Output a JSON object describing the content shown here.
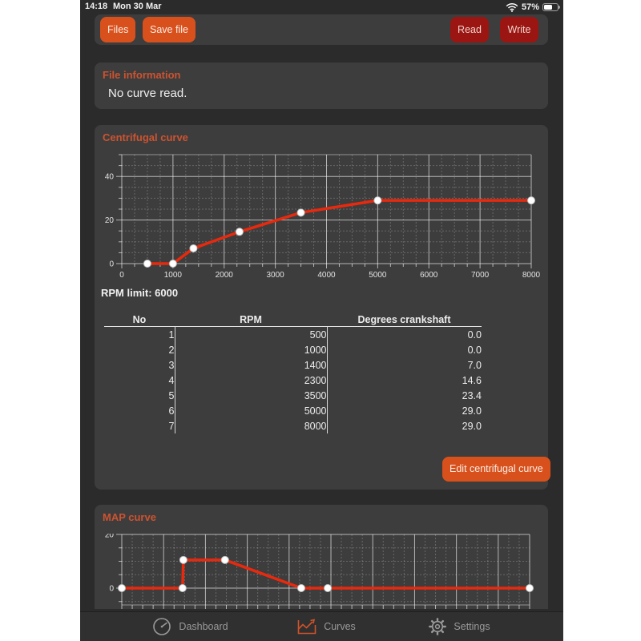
{
  "status_bar": {
    "time": "14:18",
    "date": "Mon 30 Mar",
    "battery": "57%"
  },
  "toolbar": {
    "files": "Files",
    "save": "Save file",
    "read": "Read",
    "write": "Write"
  },
  "file_info": {
    "title": "File information",
    "body": "No curve read."
  },
  "centrifugal": {
    "title": "Centrifugal curve",
    "rpm_limit_label": "RPM limit: 6000",
    "table": {
      "headers": [
        "No",
        "RPM",
        "Degrees crankshaft"
      ],
      "rows": [
        [
          "1",
          "500",
          "0.0"
        ],
        [
          "2",
          "1000",
          "0.0"
        ],
        [
          "3",
          "1400",
          "7.0"
        ],
        [
          "4",
          "2300",
          "14.6"
        ],
        [
          "5",
          "3500",
          "23.4"
        ],
        [
          "6",
          "5000",
          "29.0"
        ],
        [
          "7",
          "8000",
          "29.0"
        ]
      ]
    },
    "edit_button": "Edit centrifugal curve"
  },
  "map": {
    "title": "MAP curve"
  },
  "tab_bar": {
    "items": [
      {
        "label": "Dashboard",
        "active": false
      },
      {
        "label": "Curves",
        "active": true
      },
      {
        "label": "Settings",
        "active": false
      }
    ]
  },
  "colors": {
    "page_margin": "#ffffff",
    "app_background": "#2b2b2b",
    "panel": "#3d3d3d",
    "accent_orange": "#d8511d",
    "dark_red_button": "#9b1612",
    "section_title_orange": "#cd5330",
    "curve_red": "#e8290e",
    "tab_inactive_gray": "#9a9a9a",
    "tab_active_orange": "#d0532b"
  },
  "chart_data": [
    {
      "name": "centrifugal_curve",
      "type": "line",
      "title": "Centrifugal curve",
      "x": [
        500,
        1000,
        1400,
        2300,
        3500,
        5000,
        8000
      ],
      "y": [
        0,
        0,
        7,
        14.6,
        23.4,
        29,
        29
      ],
      "xlim": [
        0,
        8000
      ],
      "ylim": [
        0,
        50
      ],
      "x_major": 1000,
      "x_minor": 250,
      "y_major": 20,
      "y_minor": 5,
      "x_ticks": [
        0,
        1000,
        2000,
        3000,
        4000,
        5000,
        6000,
        7000,
        8000
      ],
      "x_tick_labels": [
        "0",
        "1000",
        "2000",
        "3000",
        "4000",
        "5000",
        "6000",
        "7000",
        "8000"
      ],
      "y_ticks": [
        0,
        20,
        40
      ],
      "grid": true,
      "legend": "none",
      "line_color": "#e8290e",
      "marker": "white-circle"
    },
    {
      "name": "map_curve",
      "type": "line",
      "title": "MAP curve",
      "points": [
        {
          "x_frac": 0.0,
          "y": 0
        },
        {
          "x_frac": 0.149,
          "y": 0
        },
        {
          "x_frac": 0.151,
          "y": 10.5
        },
        {
          "x_frac": 0.253,
          "y": 10.5
        },
        {
          "x_frac": 0.44,
          "y": 0
        },
        {
          "x_frac": 0.505,
          "y": 0
        },
        {
          "x_frac": 1.0,
          "y": 0
        }
      ],
      "ylim": [
        -7,
        20
      ],
      "y_ticks": [
        0,
        20
      ],
      "y_minor": 5,
      "grid": true,
      "line_color": "#e8290e",
      "marker": "white-circle",
      "note": "x-axis tick labels cut off by tab bar (not visible)"
    }
  ]
}
